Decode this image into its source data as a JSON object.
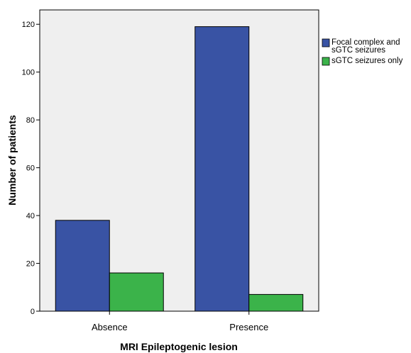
{
  "chart_data": {
    "type": "bar",
    "categories": [
      "Absence",
      "Presence"
    ],
    "series": [
      {
        "name": "Focal complex and sGTC seizures",
        "legend_lines": [
          "Focal complex and",
          "sGTC seizures"
        ],
        "values": [
          38,
          119
        ],
        "color": "#3953a4"
      },
      {
        "name": "sGTC seizures only",
        "legend_lines": [
          "sGTC seizures only"
        ],
        "values": [
          16,
          7
        ],
        "color": "#3bb34a"
      }
    ],
    "xlabel": "MRI Epileptogenic lesion",
    "ylabel": "Number of patients",
    "ylim": [
      0,
      126
    ],
    "yticks": [
      "0",
      "20",
      "40",
      "60",
      "80",
      "100",
      "120"
    ],
    "grid": false,
    "legend_position": "top-right",
    "plot_background": "#efefef"
  }
}
